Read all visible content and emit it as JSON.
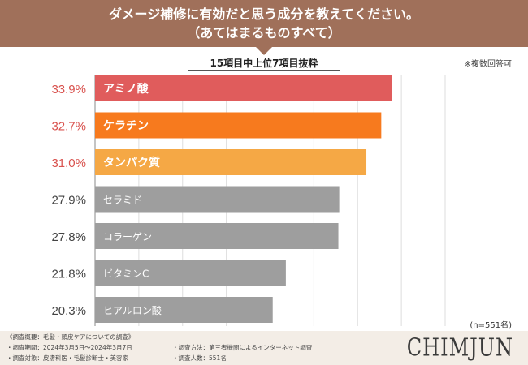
{
  "header": {
    "title_line1": "ダメージ補修に有効だと思う成分を教えてください。",
    "title_line2": "（あてはまるものすべて）"
  },
  "subtitle": "15項目中上位7項目抜粋",
  "note_multiple": "※複数回答可",
  "sample_note": "(n=551名)",
  "footer": {
    "summary": "《調査概要：毛髪・頭皮ケアについての調査》",
    "period": "・調査期間：2024年3月5日〜2024年3月7日",
    "target": "・調査対象：皮膚科医・毛髪診断士・美容家",
    "method": "・調査方法：第三者機関によるインターネット調査",
    "count": "・調査人数：551名"
  },
  "logo": "CHIMJUN",
  "colors": {
    "header_bg": "#a0705a",
    "bar_top1": "#e05c5c",
    "bar_top2": "#f77a1e",
    "bar_top3": "#f5a845",
    "bar_other": "#9e9e9e",
    "highlight_value": "#d9534f",
    "footer_bg": "#f3ede6"
  },
  "chart_data": {
    "type": "bar",
    "orientation": "horizontal",
    "title": "15項目中上位7項目抜粋",
    "categories": [
      "アミノ酸",
      "ケラチン",
      "タンパク質",
      "セラミド",
      "コラーゲン",
      "ビタミンC",
      "ヒアルロン酸"
    ],
    "values": [
      33.9,
      32.7,
      31.0,
      27.9,
      27.8,
      21.8,
      20.3
    ],
    "value_labels": [
      "33.9%",
      "32.7%",
      "31.0%",
      "27.9%",
      "27.8%",
      "21.8%",
      "20.3%"
    ],
    "xlim": [
      0,
      40
    ],
    "grid": true,
    "unit": "%"
  }
}
